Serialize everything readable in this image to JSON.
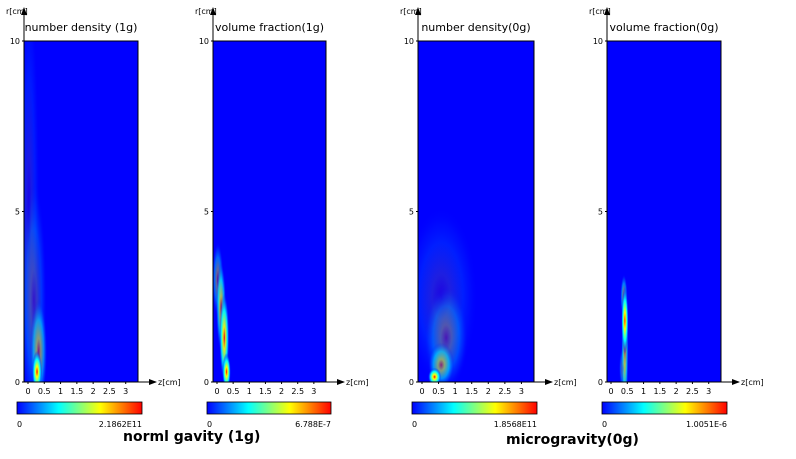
{
  "chart_data": [
    {
      "type": "heatmap",
      "title": "number density (1g)",
      "xlabel": "z[cm]",
      "ylabel": "r[cm]",
      "xlim": [
        0,
        3.5
      ],
      "ylim": [
        0,
        10
      ],
      "xticks": [
        "0",
        "0.5",
        "1",
        "1.5",
        "2",
        "2.5",
        "3"
      ],
      "yticks": [
        "0",
        "5",
        "10"
      ],
      "colorbar": {
        "min_label": "0",
        "max_label": "2.1862E11"
      },
      "plumes": [
        {
          "z": 0.4,
          "r": 0.3,
          "sz": 0.07,
          "sr": 0.28,
          "peak": 1.0
        },
        {
          "z": 0.45,
          "r": 0.9,
          "sz": 0.12,
          "sr": 0.7,
          "peak": 0.45
        },
        {
          "z": 0.3,
          "r": 2.4,
          "sz": 0.18,
          "sr": 1.6,
          "peak": 0.15
        },
        {
          "z": 0.15,
          "r": 5.0,
          "sz": 0.15,
          "sr": 3.0,
          "peak": 0.05
        }
      ]
    },
    {
      "type": "heatmap",
      "title": "volume fraction(1g)",
      "xlabel": "z[cm]",
      "ylabel": "r[cm]",
      "xlim": [
        0,
        3.5
      ],
      "ylim": [
        0,
        10
      ],
      "xticks": [
        "0",
        "0.5",
        "1",
        "1.5",
        "2",
        "2.5",
        "3"
      ],
      "yticks": [
        "0",
        "5",
        "10"
      ],
      "colorbar": {
        "min_label": "0",
        "max_label": "6.788E-7"
      },
      "plumes": [
        {
          "z": 0.42,
          "r": 0.3,
          "sz": 0.06,
          "sr": 0.25,
          "peak": 1.0
        },
        {
          "z": 0.35,
          "r": 1.3,
          "sz": 0.07,
          "sr": 0.6,
          "peak": 0.85
        },
        {
          "z": 0.25,
          "r": 2.2,
          "sz": 0.07,
          "sr": 0.6,
          "peak": 0.6
        },
        {
          "z": 0.15,
          "r": 3.0,
          "sz": 0.08,
          "sr": 0.5,
          "peak": 0.35
        }
      ]
    },
    {
      "type": "heatmap",
      "title": "number density(0g)",
      "xlabel": "z[cm]",
      "ylabel": "r[cm]",
      "xlim": [
        0,
        3.5
      ],
      "ylim": [
        0,
        10
      ],
      "xticks": [
        "0",
        "0.5",
        "1",
        "1.5",
        "2",
        "2.5",
        "3"
      ],
      "yticks": [
        "0",
        "5",
        "10"
      ],
      "colorbar": {
        "min_label": "0",
        "max_label": "1.8568E11"
      },
      "plumes": [
        {
          "z": 0.5,
          "r": 0.15,
          "sz": 0.09,
          "sr": 0.12,
          "peak": 1.0
        },
        {
          "z": 0.7,
          "r": 0.5,
          "sz": 0.18,
          "sr": 0.3,
          "peak": 0.45
        },
        {
          "z": 0.85,
          "r": 1.3,
          "sz": 0.3,
          "sr": 0.7,
          "peak": 0.2
        },
        {
          "z": 0.7,
          "r": 2.5,
          "sz": 0.5,
          "sr": 1.2,
          "peak": 0.07
        }
      ]
    },
    {
      "type": "heatmap",
      "title": "volume fraction(0g)",
      "xlabel": "z[cm]",
      "ylabel": "r[cm]",
      "xlim": [
        0,
        3.5
      ],
      "ylim": [
        0,
        10
      ],
      "xticks": [
        "0",
        "0.5",
        "1",
        "1.5",
        "2",
        "2.5",
        "3"
      ],
      "yticks": [
        "0",
        "5",
        "10"
      ],
      "colorbar": {
        "min_label": "0",
        "max_label": "1.0051E-6"
      },
      "plumes": [
        {
          "z": 0.55,
          "r": 1.8,
          "sz": 0.05,
          "sr": 0.45,
          "peak": 1.0
        },
        {
          "z": 0.55,
          "r": 1.0,
          "sz": 0.05,
          "sr": 0.9,
          "peak": 0.55
        },
        {
          "z": 0.52,
          "r": 2.5,
          "sz": 0.05,
          "sr": 0.3,
          "peak": 0.45
        },
        {
          "z": 0.5,
          "r": 0.4,
          "sz": 0.06,
          "sr": 0.3,
          "peak": 0.3
        }
      ]
    }
  ],
  "group_labels": {
    "left": "norml gavity (1g)",
    "right": "microgravity(0g)"
  },
  "colormap": [
    "#0000ff",
    "#0080ff",
    "#00ffff",
    "#80ff80",
    "#ffff00",
    "#ff8000",
    "#ff0000"
  ],
  "background_color": "#0000ff"
}
